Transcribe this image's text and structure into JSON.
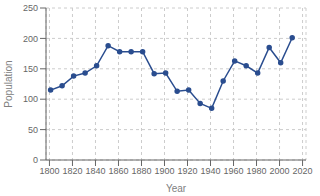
{
  "chart_data": {
    "type": "line",
    "x": [
      1801,
      1811,
      1821,
      1831,
      1841,
      1851,
      1861,
      1871,
      1881,
      1891,
      1901,
      1911,
      1921,
      1931,
      1941,
      1951,
      1961,
      1971,
      1981,
      1991,
      2001,
      2011
    ],
    "values": [
      115,
      122,
      138,
      143,
      155,
      188,
      178,
      178,
      178,
      142,
      143,
      113,
      115,
      93,
      85,
      130,
      163,
      155,
      143,
      185,
      160,
      201
    ],
    "color": "#2a4d8f",
    "marker": "circle",
    "xlabel": "Year",
    "ylabel": "Population",
    "xlim": [
      1797,
      2023
    ],
    "ylim": [
      0,
      250
    ],
    "xticks": [
      1800,
      1820,
      1840,
      1860,
      1880,
      1900,
      1920,
      1940,
      1960,
      1980,
      2000,
      2020
    ],
    "yticks": [
      0,
      50,
      100,
      150,
      200,
      250
    ],
    "grid": true
  }
}
